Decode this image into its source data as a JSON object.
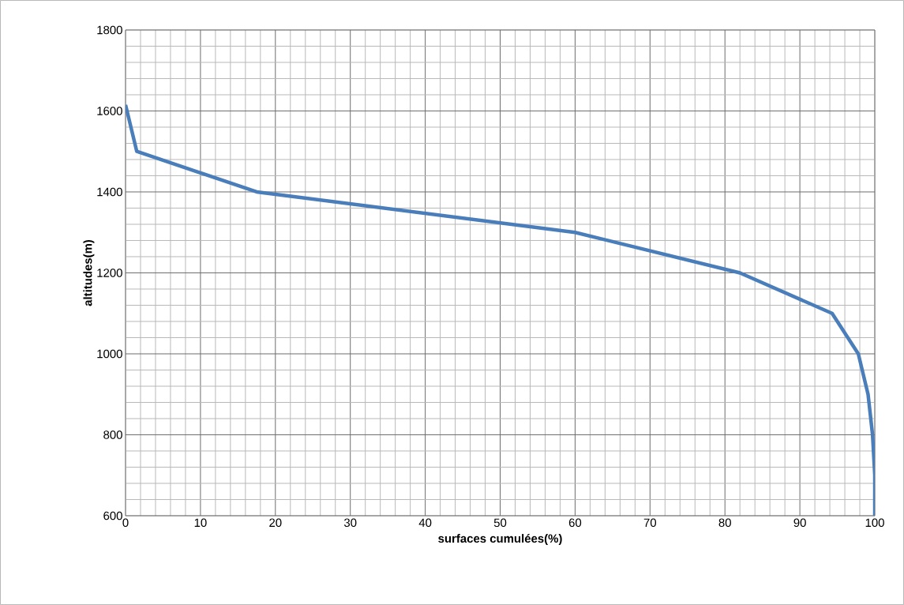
{
  "chart_data": {
    "type": "line",
    "xlabel": "surfaces cumulées(%)",
    "ylabel": "altitudes(m)",
    "x": [
      0,
      1.5,
      17.5,
      60,
      82,
      94.3,
      97.8,
      99.1,
      99.7,
      100,
      100
    ],
    "series": [
      {
        "color": "#4a7ebb",
        "values": [
          1615,
          1500,
          1400,
          1300,
          1200,
          1100,
          1000,
          900,
          800,
          700,
          600
        ]
      }
    ],
    "xlim": [
      0,
      100
    ],
    "ylim": [
      600,
      1800
    ],
    "xticks": [
      0,
      10,
      20,
      30,
      40,
      50,
      60,
      70,
      80,
      90,
      100
    ],
    "yticks": [
      600,
      800,
      1000,
      1200,
      1400,
      1600,
      1800
    ],
    "grid": true,
    "marker": "none",
    "line_style": "solid"
  }
}
